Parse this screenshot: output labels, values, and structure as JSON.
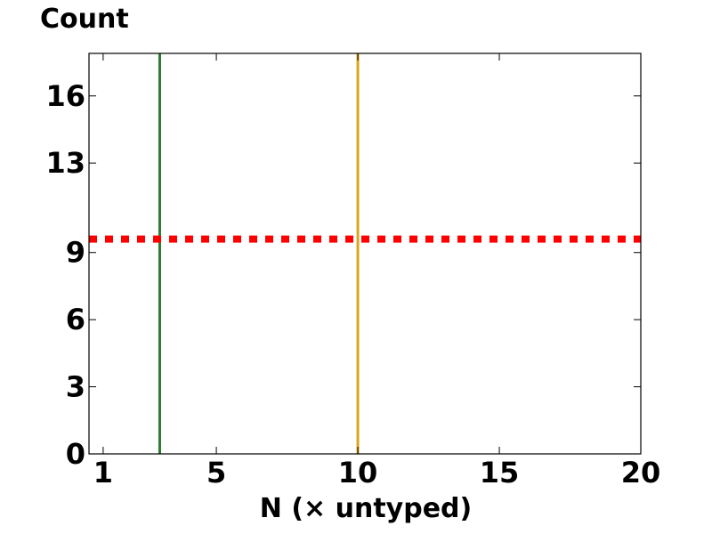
{
  "chart_data": {
    "type": "line",
    "title": "",
    "xlabel": "N  (× untyped)",
    "ylabel": "Count",
    "xlim": [
      0.5,
      20
    ],
    "ylim": [
      0,
      17.9
    ],
    "x_ticks": [
      1,
      5,
      10,
      15,
      20
    ],
    "y_ticks": [
      0,
      3,
      6,
      9,
      13,
      16
    ],
    "grid": false,
    "legend": "none",
    "horizontal_lines": [
      {
        "y": 9.6,
        "color": "#ff0000",
        "style": "dotted"
      }
    ],
    "vertical_lines": [
      {
        "x": 3,
        "color": "#2e7d32",
        "style": "solid"
      },
      {
        "x": 10,
        "color": "#daa520",
        "style": "solid"
      }
    ]
  }
}
